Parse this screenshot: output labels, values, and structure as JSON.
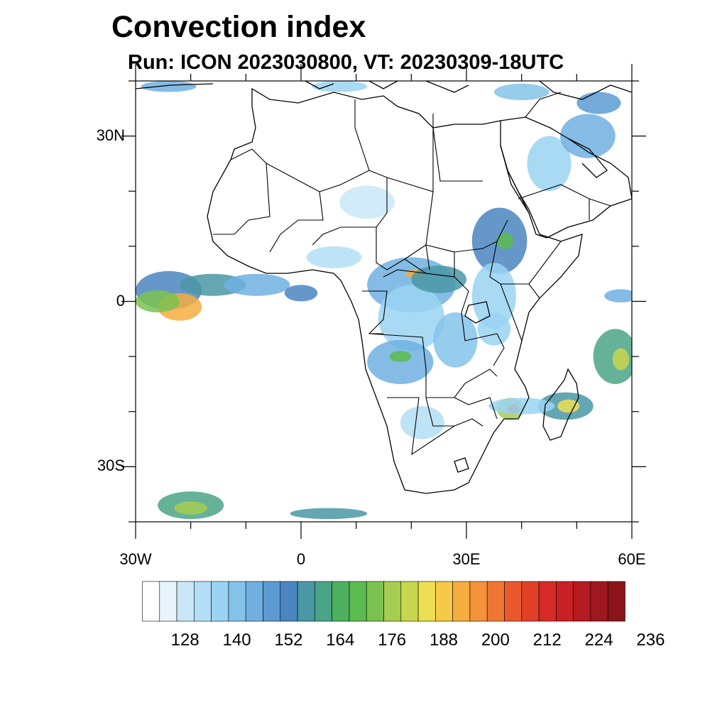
{
  "title": "Convection index",
  "subtitle": "Run: ICON 2023030800,  VT: 20230309-18UTC",
  "lat_labels": [
    {
      "text": "30N",
      "lat": 30
    },
    {
      "text": "0",
      "lat": 0
    },
    {
      "text": "30S",
      "lat": -30
    }
  ],
  "lon_labels": [
    {
      "text": "30W",
      "lon": -30
    },
    {
      "text": "0",
      "lon": 0
    },
    {
      "text": "30E",
      "lon": 30
    },
    {
      "text": "60E",
      "lon": 60
    }
  ],
  "map_extent": {
    "lon_min": -30,
    "lon_max": 60,
    "lat_min": -40,
    "lat_max": 40
  },
  "colorbar": {
    "colors": [
      "#ffffff",
      "#e8f4fb",
      "#c9e7f7",
      "#b3def5",
      "#9ad4f2",
      "#84c3e9",
      "#6fb0e0",
      "#5b9bd2",
      "#4a86c0",
      "#4a97a6",
      "#4aa487",
      "#4cb060",
      "#5abb4e",
      "#7cc250",
      "#a6cd50",
      "#c8d64e",
      "#ecdf52",
      "#f6c94a",
      "#f5ad3f",
      "#f39239",
      "#ef7733",
      "#e9592e",
      "#e14029",
      "#d62b27",
      "#c82025",
      "#b31a22",
      "#a0181f",
      "#8b141b"
    ],
    "tick_labels": [
      "128",
      "140",
      "152",
      "164",
      "176",
      "188",
      "200",
      "212",
      "224",
      "236"
    ]
  },
  "convection_cells": [
    {
      "lon": -24,
      "lat": 2,
      "rx": 6,
      "ry": 3.5,
      "level": 8
    },
    {
      "lon": -22,
      "lat": -1,
      "rx": 4,
      "ry": 2.5,
      "level": 18
    },
    {
      "lon": -26,
      "lat": 0,
      "rx": 4,
      "ry": 2,
      "level": 13
    },
    {
      "lon": -16,
      "lat": 3,
      "rx": 6,
      "ry": 2,
      "level": 9
    },
    {
      "lon": -8,
      "lat": 3,
      "rx": 6,
      "ry": 2,
      "level": 6
    },
    {
      "lon": 0,
      "lat": 1.5,
      "rx": 3,
      "ry": 1.5,
      "level": 8
    },
    {
      "lon": 20,
      "lat": 3,
      "rx": 8,
      "ry": 5,
      "level": 6
    },
    {
      "lon": 21,
      "lat": 5,
      "rx": 2,
      "ry": 0.8,
      "level": 18
    },
    {
      "lon": 20,
      "lat": -3,
      "rx": 6,
      "ry": 6,
      "level": 4
    },
    {
      "lon": 25,
      "lat": 4,
      "rx": 5,
      "ry": 2.5,
      "level": 9
    },
    {
      "lon": 36,
      "lat": 11,
      "rx": 5,
      "ry": 6,
      "level": 8
    },
    {
      "lon": 37,
      "lat": 11,
      "rx": 1.5,
      "ry": 1.5,
      "level": 12
    },
    {
      "lon": 35,
      "lat": 1,
      "rx": 4,
      "ry": 6,
      "level": 4
    },
    {
      "lon": 18,
      "lat": -11,
      "rx": 6,
      "ry": 4,
      "level": 6
    },
    {
      "lon": 18,
      "lat": -10,
      "rx": 2,
      "ry": 1,
      "level": 12
    },
    {
      "lon": 28,
      "lat": -7,
      "rx": 4,
      "ry": 5,
      "level": 5
    },
    {
      "lon": 38,
      "lat": -19.5,
      "rx": 2.5,
      "ry": 2,
      "level": 14
    },
    {
      "lon": 38.5,
      "lat": -19.5,
      "rx": 1,
      "ry": 0.8,
      "level": 22
    },
    {
      "lon": 48,
      "lat": -19,
      "rx": 5,
      "ry": 2.5,
      "level": 9
    },
    {
      "lon": 48.5,
      "lat": -19,
      "rx": 2,
      "ry": 1.2,
      "level": 16
    },
    {
      "lon": 57,
      "lat": -10,
      "rx": 4,
      "ry": 5,
      "level": 10
    },
    {
      "lon": 58,
      "lat": -10.5,
      "rx": 1.5,
      "ry": 2,
      "level": 15
    },
    {
      "lon": 40,
      "lat": -19,
      "rx": 6,
      "ry": 1.5,
      "level": 4
    },
    {
      "lon": 12,
      "lat": 18,
      "rx": 5,
      "ry": 3,
      "level": 2
    },
    {
      "lon": 6,
      "lat": 8,
      "rx": 5,
      "ry": 2,
      "level": 3
    },
    {
      "lon": 45,
      "lat": 25,
      "rx": 4,
      "ry": 5,
      "level": 4
    },
    {
      "lon": 52,
      "lat": 30,
      "rx": 5,
      "ry": 4,
      "level": 6
    },
    {
      "lon": 54,
      "lat": 36,
      "rx": 4,
      "ry": 2,
      "level": 7
    },
    {
      "lon": 7,
      "lat": 39,
      "rx": 5,
      "ry": 1,
      "level": 4
    },
    {
      "lon": -24,
      "lat": 39,
      "rx": 5,
      "ry": 1,
      "level": 6
    },
    {
      "lon": 40,
      "lat": 38,
      "rx": 5,
      "ry": 1.5,
      "level": 5
    },
    {
      "lon": -20,
      "lat": -37,
      "rx": 6,
      "ry": 2.5,
      "level": 10
    },
    {
      "lon": -20,
      "lat": -37.5,
      "rx": 3,
      "ry": 1.2,
      "level": 14
    },
    {
      "lon": 5,
      "lat": -38.5,
      "rx": 7,
      "ry": 1,
      "level": 9
    },
    {
      "lon": 58,
      "lat": 1,
      "rx": 3,
      "ry": 1.2,
      "level": 6
    },
    {
      "lon": 22,
      "lat": -22,
      "rx": 4,
      "ry": 3,
      "level": 3
    },
    {
      "lon": 35,
      "lat": -5,
      "rx": 3,
      "ry": 3,
      "level": 4
    }
  ]
}
